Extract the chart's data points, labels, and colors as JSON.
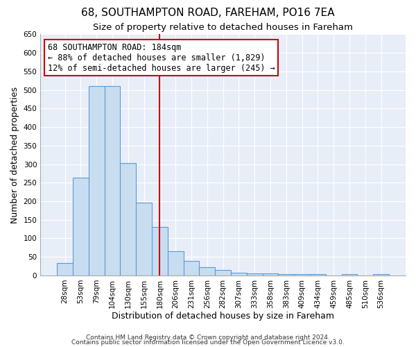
{
  "title": "68, SOUTHAMPTON ROAD, FAREHAM, PO16 7EA",
  "subtitle": "Size of property relative to detached houses in Fareham",
  "xlabel": "Distribution of detached houses by size in Fareham",
  "ylabel": "Number of detached properties",
  "bar_labels": [
    "28sqm",
    "53sqm",
    "79sqm",
    "104sqm",
    "130sqm",
    "155sqm",
    "180sqm",
    "206sqm",
    "231sqm",
    "256sqm",
    "282sqm",
    "307sqm",
    "333sqm",
    "358sqm",
    "383sqm",
    "409sqm",
    "434sqm",
    "459sqm",
    "485sqm",
    "510sqm",
    "536sqm"
  ],
  "bar_values": [
    33,
    263,
    511,
    510,
    303,
    197,
    130,
    65,
    40,
    23,
    15,
    8,
    5,
    5,
    3,
    3,
    3,
    0,
    3,
    0,
    3
  ],
  "bar_color": "#c8ddf0",
  "bar_edge_color": "#5b9bd5",
  "vline_index": 6,
  "vline_color": "#cc0000",
  "annotation_text": "68 SOUTHAMPTON ROAD: 184sqm\n← 88% of detached houses are smaller (1,829)\n12% of semi-detached houses are larger (245) →",
  "annotation_box_facecolor": "#ffffff",
  "annotation_box_edgecolor": "#cc0000",
  "ylim": [
    0,
    650
  ],
  "yticks": [
    0,
    50,
    100,
    150,
    200,
    250,
    300,
    350,
    400,
    450,
    500,
    550,
    600,
    650
  ],
  "footer1": "Contains HM Land Registry data © Crown copyright and database right 2024.",
  "footer2": "Contains public sector information licensed under the Open Government Licence v3.0.",
  "bg_color": "#ffffff",
  "plot_bg_color": "#e8eef8",
  "grid_color": "#ffffff",
  "title_fontsize": 11,
  "subtitle_fontsize": 9.5,
  "tick_fontsize": 7.5,
  "label_fontsize": 9,
  "annotation_fontsize": 8.5,
  "footer_fontsize": 6.5
}
